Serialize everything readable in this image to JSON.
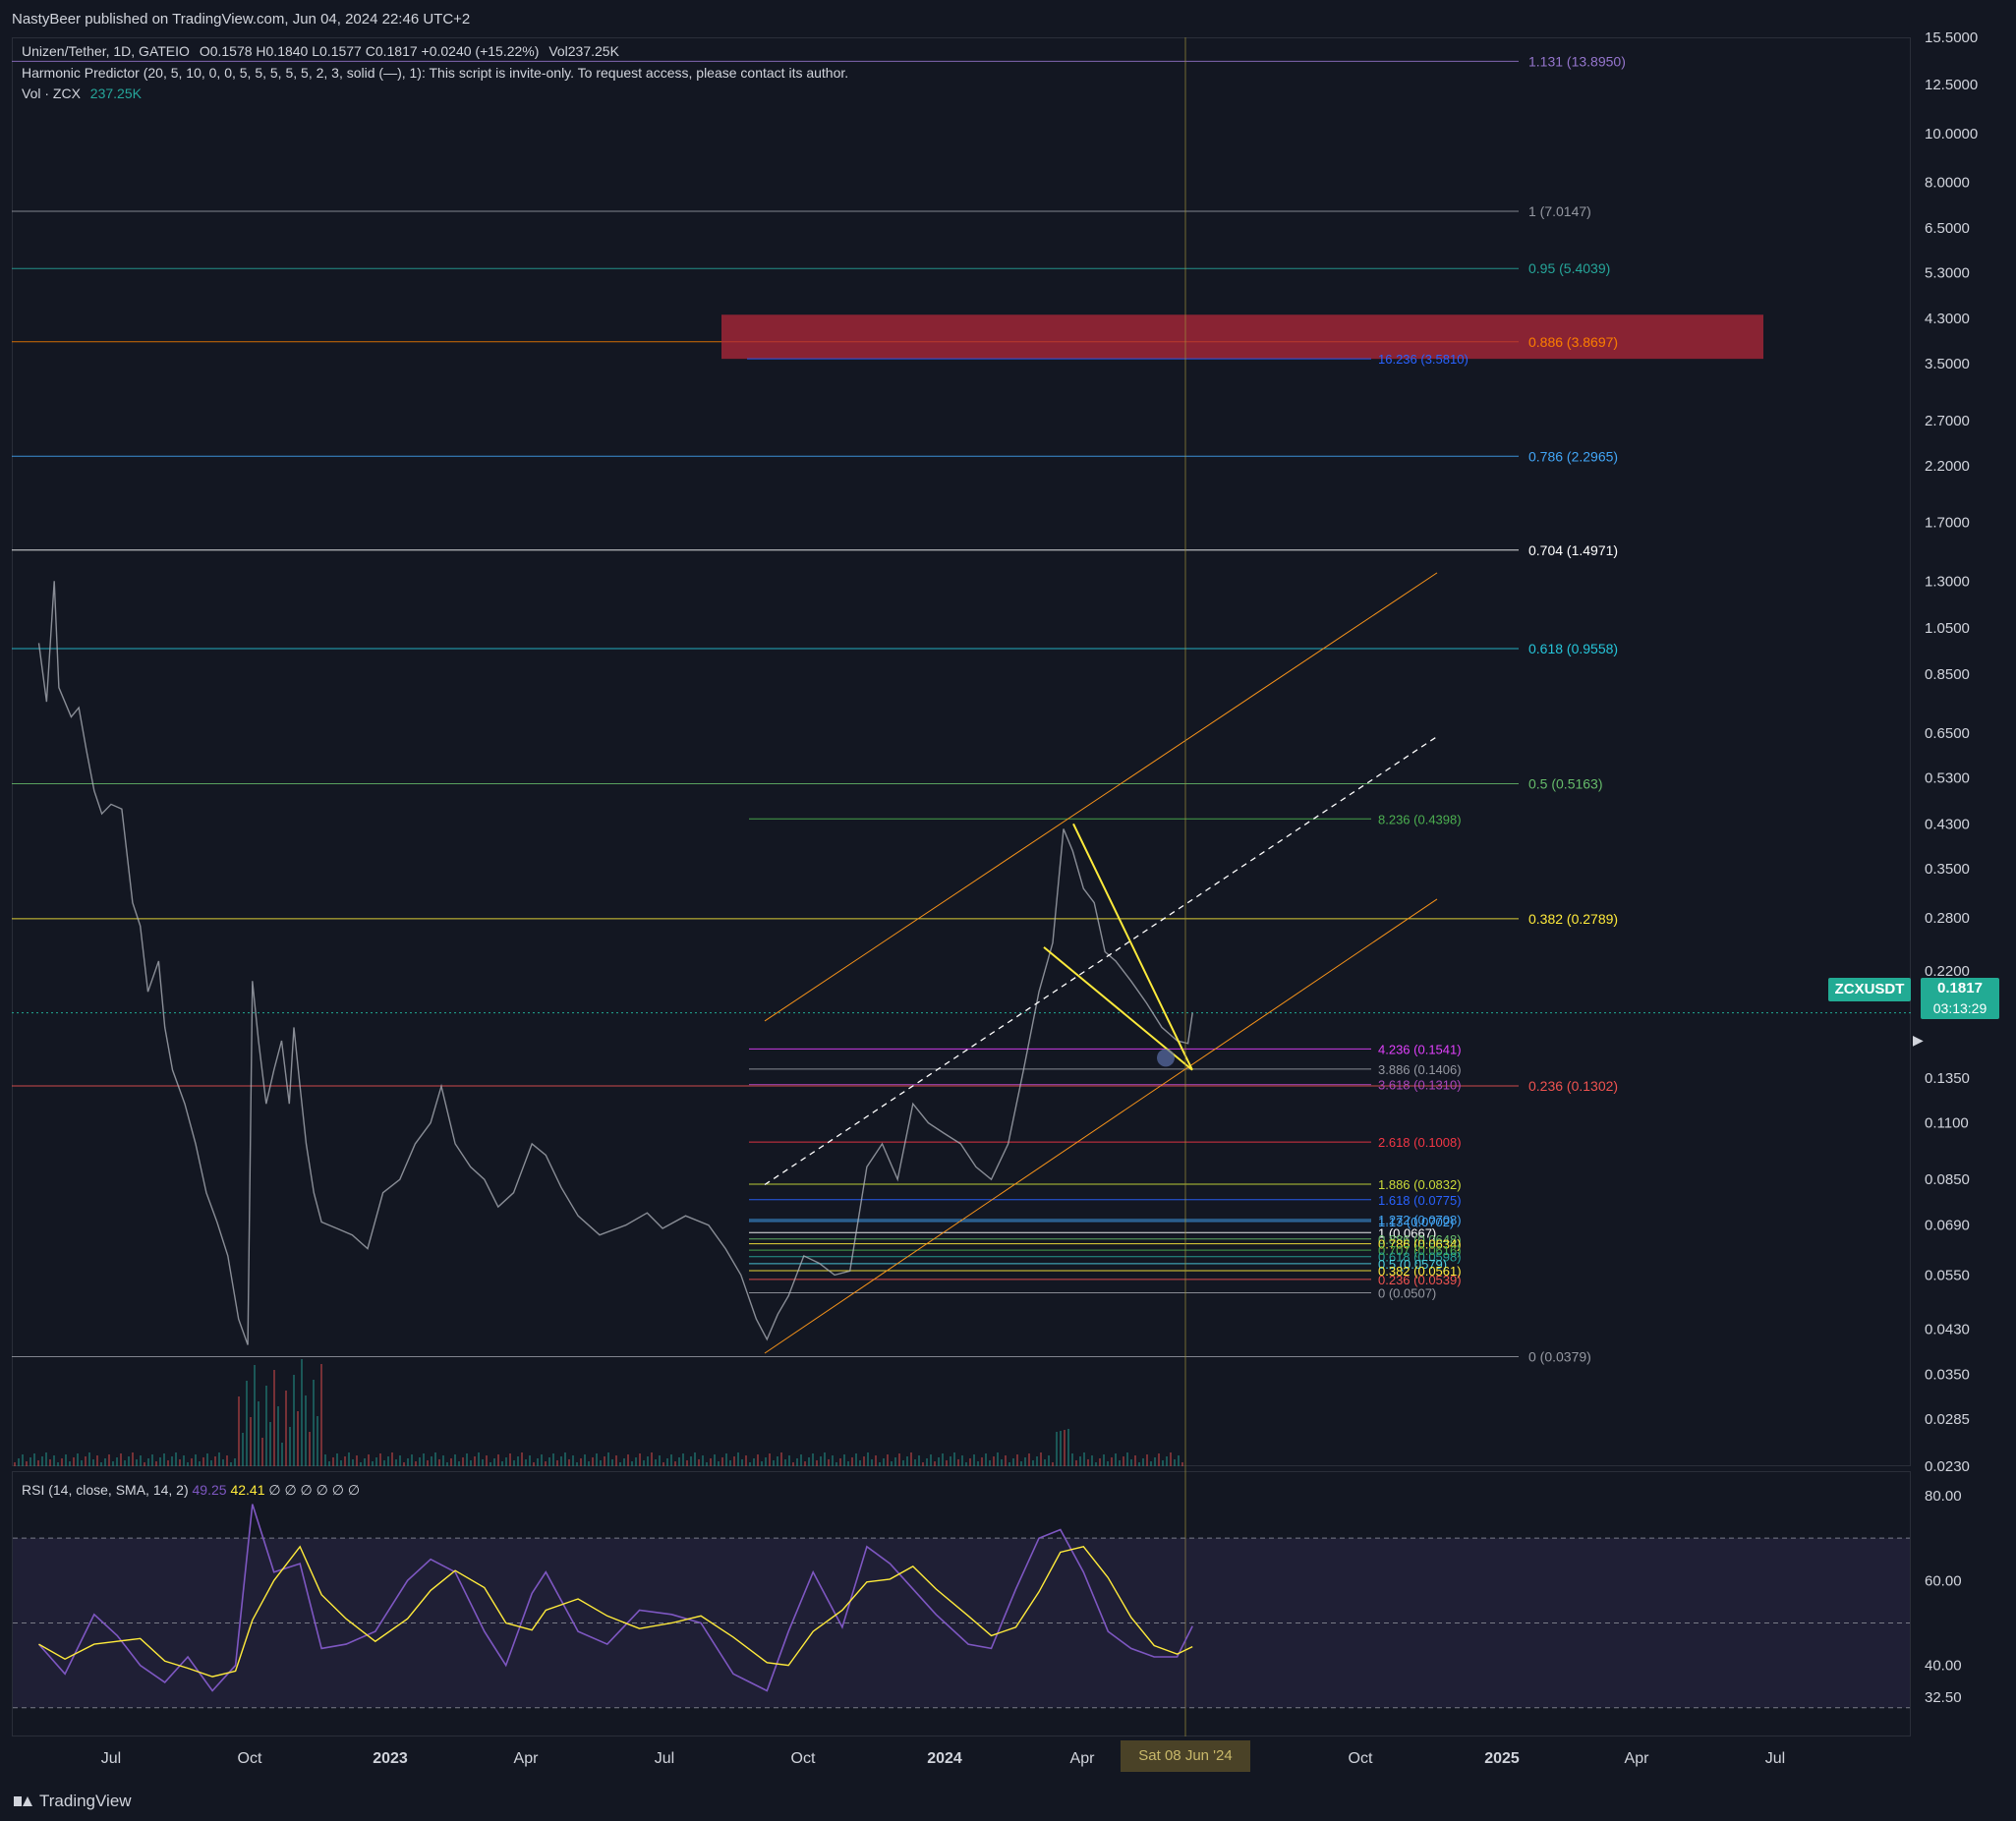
{
  "header": {
    "published": "NastyBeer published on TradingView.com, Jun 04, 2024 22:46 UTC+2"
  },
  "legend": {
    "symbol": "Unizen/Tether, 1D, GATEIO",
    "ohlc": "O0.1578  H0.1840  L0.1577  C0.1817  +0.0240 (+15.22%)",
    "vol": "Vol237.25K",
    "indicator": "Harmonic Predictor (20, 5, 10, 0, 0, 5, 5, 5, 5, 5, 2, 3, solid (—), 1): This script is invite-only. To request access, please contact its author.",
    "vol_label": "Vol · ZCX",
    "vol_value": "237.25K"
  },
  "rsi": {
    "label": "RSI (14, close, SMA, 14, 2)",
    "value1": "49.25",
    "value2": "42.41",
    "rest": "∅ ∅ ∅ ∅ ∅ ∅"
  },
  "badges": {
    "ticker": "ZCXUSDT",
    "price": "0.1817",
    "countdown": "03:13:29",
    "date": "Sat 08 Jun '24"
  },
  "footer": {
    "brand": "TradingView"
  },
  "colors": {
    "background": "#131722",
    "up": "#26a69a",
    "down": "#ef5350",
    "price_line": "#b2b5be",
    "channel": "#f7931a",
    "wedge": "#ffeb3b",
    "rsi_line": "#7e57c2",
    "rsi_ma": "#ffeb3b",
    "zone": "#b2283a"
  },
  "chart_data": {
    "type": "line",
    "scale": "log",
    "symbol": "ZCXUSDT",
    "y_ticks": [
      "15.5000",
      "12.5000",
      "10.0000",
      "8.0000",
      "6.5000",
      "5.3000",
      "4.3000",
      "3.5000",
      "2.7000",
      "2.2000",
      "1.7000",
      "1.3000",
      "1.0500",
      "0.8500",
      "0.6500",
      "0.5300",
      "0.4300",
      "0.3500",
      "0.2800",
      "0.2200",
      "0.1350",
      "0.1100",
      "0.0850",
      "0.0690",
      "0.0550",
      "0.0430",
      "0.0350",
      "0.0285",
      "0.0230"
    ],
    "x_ticks": [
      "Jul",
      "Oct",
      "2023",
      "Apr",
      "Jul",
      "Oct",
      "2024",
      "Apr",
      "Jun",
      "Oct",
      "2025",
      "Apr",
      "Jul"
    ],
    "fib_levels_major": [
      {
        "label": "1.131 (13.8950)",
        "value": 13.895,
        "color": "#9575cd"
      },
      {
        "label": "1 (7.0147)",
        "value": 7.0147,
        "color": "#9598a1"
      },
      {
        "label": "0.95 (5.4039)",
        "value": 5.4039,
        "color": "#26a69a"
      },
      {
        "label": "0.886 (3.8697)",
        "value": 3.8697,
        "color": "#f57c00"
      },
      {
        "label": "0.786 (2.2965)",
        "value": 2.2965,
        "color": "#42a5f5"
      },
      {
        "label": "0.704 (1.4971)",
        "value": 1.4971,
        "color": "#ffffff"
      },
      {
        "label": "0.618 (0.9558)",
        "value": 0.9558,
        "color": "#26c6da"
      },
      {
        "label": "0.5 (0.5163)",
        "value": 0.5163,
        "color": "#66bb6a"
      },
      {
        "label": "0.382 (0.2789)",
        "value": 0.2789,
        "color": "#ffeb3b"
      },
      {
        "label": "0.236 (0.1302)",
        "value": 0.1302,
        "color": "#ef5350"
      },
      {
        "label": "0 (0.0379)",
        "value": 0.0379,
        "color": "#9598a1"
      }
    ],
    "fib_levels_minor": [
      {
        "label": "16.236 (3.5810)",
        "value": 3.581,
        "color": "#2962ff"
      },
      {
        "label": "8.236 (0.4398)",
        "value": 0.4398,
        "color": "#4caf50"
      },
      {
        "label": "4.236 (0.1541)",
        "value": 0.1541,
        "color": "#e040fb"
      },
      {
        "label": "3.886 (0.1406)",
        "value": 0.1406,
        "color": "#9598a1"
      },
      {
        "label": "3.618 (0.1310)",
        "value": 0.131,
        "color": "#ab47bc"
      },
      {
        "label": "2.618 (0.1008)",
        "value": 0.1008,
        "color": "#f23645"
      },
      {
        "label": "1.886 (0.0832)",
        "value": 0.0832,
        "color": "#cddc39"
      },
      {
        "label": "1.618 (0.0775)",
        "value": 0.0775,
        "color": "#2962ff"
      },
      {
        "label": "1.272 (0.0708)",
        "value": 0.0708,
        "color": "#42a5f5"
      },
      {
        "label": "1.13 (0.0702)",
        "value": 0.0702,
        "color": "#42a5f5"
      },
      {
        "label": "1 (0.0667)",
        "value": 0.0667,
        "color": "#ffffff"
      },
      {
        "label": "0.886 (0.0648)",
        "value": 0.0648,
        "color": "#66bb6a"
      },
      {
        "label": "0.786 (0.0634)",
        "value": 0.0634,
        "color": "#ffeb3b"
      },
      {
        "label": "0.707 (0.0616)",
        "value": 0.0616,
        "color": "#4caf50"
      },
      {
        "label": "0.618 (0.0598)",
        "value": 0.0598,
        "color": "#26a69a"
      },
      {
        "label": "0.5 (0.0579)",
        "value": 0.0579,
        "color": "#4dd0e1"
      },
      {
        "label": "0.382 (0.0561)",
        "value": 0.0561,
        "color": "#ffeb3b"
      },
      {
        "label": "0.236 (0.0539)",
        "value": 0.0539,
        "color": "#ef5350"
      },
      {
        "label": "0 (0.0507)",
        "value": 0.0507,
        "color": "#9598a1"
      }
    ],
    "price_path": [
      [
        "2022-05-15",
        0.98
      ],
      [
        "2022-05-20",
        0.75
      ],
      [
        "2022-05-25",
        1.3
      ],
      [
        "2022-05-28",
        0.8
      ],
      [
        "2022-06-05",
        0.7
      ],
      [
        "2022-06-10",
        0.73
      ],
      [
        "2022-06-15",
        0.6
      ],
      [
        "2022-06-20",
        0.5
      ],
      [
        "2022-06-25",
        0.45
      ],
      [
        "2022-07-01",
        0.47
      ],
      [
        "2022-07-08",
        0.46
      ],
      [
        "2022-07-15",
        0.3
      ],
      [
        "2022-07-20",
        0.27
      ],
      [
        "2022-07-25",
        0.2
      ],
      [
        "2022-08-01",
        0.23
      ],
      [
        "2022-08-05",
        0.17
      ],
      [
        "2022-08-10",
        0.14
      ],
      [
        "2022-08-18",
        0.12
      ],
      [
        "2022-08-25",
        0.1
      ],
      [
        "2022-09-01",
        0.08
      ],
      [
        "2022-09-08",
        0.07
      ],
      [
        "2022-09-15",
        0.06
      ],
      [
        "2022-09-22",
        0.045
      ],
      [
        "2022-09-28",
        0.04
      ],
      [
        "2022-10-01",
        0.21
      ],
      [
        "2022-10-05",
        0.16
      ],
      [
        "2022-10-10",
        0.12
      ],
      [
        "2022-10-15",
        0.14
      ],
      [
        "2022-10-20",
        0.16
      ],
      [
        "2022-10-25",
        0.12
      ],
      [
        "2022-10-28",
        0.17
      ],
      [
        "2022-11-01",
        0.13
      ],
      [
        "2022-11-05",
        0.1
      ],
      [
        "2022-11-10",
        0.08
      ],
      [
        "2022-11-15",
        0.07
      ],
      [
        "2022-11-25",
        0.068
      ],
      [
        "2022-12-05",
        0.066
      ],
      [
        "2022-12-15",
        0.062
      ],
      [
        "2022-12-25",
        0.08
      ],
      [
        "2023-01-05",
        0.085
      ],
      [
        "2023-01-15",
        0.1
      ],
      [
        "2023-01-25",
        0.11
      ],
      [
        "2023-02-01",
        0.13
      ],
      [
        "2023-02-10",
        0.1
      ],
      [
        "2023-02-20",
        0.09
      ],
      [
        "2023-03-01",
        0.085
      ],
      [
        "2023-03-10",
        0.075
      ],
      [
        "2023-03-20",
        0.08
      ],
      [
        "2023-04-01",
        0.1
      ],
      [
        "2023-04-10",
        0.095
      ],
      [
        "2023-04-20",
        0.082
      ],
      [
        "2023-05-01",
        0.072
      ],
      [
        "2023-05-15",
        0.066
      ],
      [
        "2023-06-01",
        0.069
      ],
      [
        "2023-06-15",
        0.073
      ],
      [
        "2023-06-25",
        0.068
      ],
      [
        "2023-07-10",
        0.072
      ],
      [
        "2023-07-25",
        0.069
      ],
      [
        "2023-08-05",
        0.062
      ],
      [
        "2023-08-15",
        0.055
      ],
      [
        "2023-08-25",
        0.045
      ],
      [
        "2023-09-01",
        0.041
      ],
      [
        "2023-09-08",
        0.046
      ],
      [
        "2023-09-15",
        0.05
      ],
      [
        "2023-09-25",
        0.06
      ],
      [
        "2023-10-05",
        0.058
      ],
      [
        "2023-10-15",
        0.055
      ],
      [
        "2023-10-25",
        0.056
      ],
      [
        "2023-11-05",
        0.09
      ],
      [
        "2023-11-15",
        0.1
      ],
      [
        "2023-11-25",
        0.085
      ],
      [
        "2023-12-05",
        0.12
      ],
      [
        "2023-12-15",
        0.11
      ],
      [
        "2023-12-25",
        0.105
      ],
      [
        "2024-01-05",
        0.1
      ],
      [
        "2024-01-15",
        0.09
      ],
      [
        "2024-01-25",
        0.085
      ],
      [
        "2024-02-05",
        0.1
      ],
      [
        "2024-02-15",
        0.14
      ],
      [
        "2024-02-25",
        0.2
      ],
      [
        "2024-03-05",
        0.25
      ],
      [
        "2024-03-12",
        0.42
      ],
      [
        "2024-03-18",
        0.38
      ],
      [
        "2024-03-25",
        0.32
      ],
      [
        "2024-04-01",
        0.3
      ],
      [
        "2024-04-08",
        0.24
      ],
      [
        "2024-04-15",
        0.23
      ],
      [
        "2024-04-25",
        0.21
      ],
      [
        "2024-05-05",
        0.19
      ],
      [
        "2024-05-15",
        0.17
      ],
      [
        "2024-05-25",
        0.16
      ],
      [
        "2024-06-01",
        0.158
      ],
      [
        "2024-06-04",
        0.1817
      ]
    ],
    "rsi_path": [
      [
        "2022-05-15",
        45
      ],
      [
        "2022-06-01",
        38
      ],
      [
        "2022-06-20",
        52
      ],
      [
        "2022-07-05",
        47
      ],
      [
        "2022-07-20",
        40
      ],
      [
        "2022-08-05",
        36
      ],
      [
        "2022-08-20",
        42
      ],
      [
        "2022-09-05",
        34
      ],
      [
        "2022-09-20",
        40
      ],
      [
        "2022-10-01",
        78
      ],
      [
        "2022-10-15",
        62
      ],
      [
        "2022-11-01",
        64
      ],
      [
        "2022-11-15",
        44
      ],
      [
        "2022-12-01",
        45
      ],
      [
        "2022-12-20",
        48
      ],
      [
        "2023-01-10",
        60
      ],
      [
        "2023-01-25",
        65
      ],
      [
        "2023-02-10",
        62
      ],
      [
        "2023-03-01",
        48
      ],
      [
        "2023-03-15",
        40
      ],
      [
        "2023-04-01",
        57
      ],
      [
        "2023-04-10",
        62
      ],
      [
        "2023-05-01",
        48
      ],
      [
        "2023-05-20",
        45
      ],
      [
        "2023-06-10",
        53
      ],
      [
        "2023-07-01",
        52
      ],
      [
        "2023-07-20",
        50
      ],
      [
        "2023-08-10",
        38
      ],
      [
        "2023-09-01",
        34
      ],
      [
        "2023-09-15",
        48
      ],
      [
        "2023-10-01",
        62
      ],
      [
        "2023-10-20",
        49
      ],
      [
        "2023-11-05",
        68
      ],
      [
        "2023-11-20",
        64
      ],
      [
        "2023-12-05",
        58
      ],
      [
        "2023-12-20",
        52
      ],
      [
        "2024-01-10",
        45
      ],
      [
        "2024-01-25",
        44
      ],
      [
        "2024-02-10",
        58
      ],
      [
        "2024-02-25",
        70
      ],
      [
        "2024-03-10",
        72
      ],
      [
        "2024-03-25",
        62
      ],
      [
        "2024-04-10",
        48
      ],
      [
        "2024-04-25",
        44
      ],
      [
        "2024-05-10",
        42
      ],
      [
        "2024-05-25",
        42
      ],
      [
        "2024-06-04",
        49.25
      ]
    ],
    "rsi_levels": [
      70,
      50,
      30
    ],
    "rsi_ticks": [
      "80.00",
      "60.00",
      "40.00",
      "32.50"
    ]
  }
}
